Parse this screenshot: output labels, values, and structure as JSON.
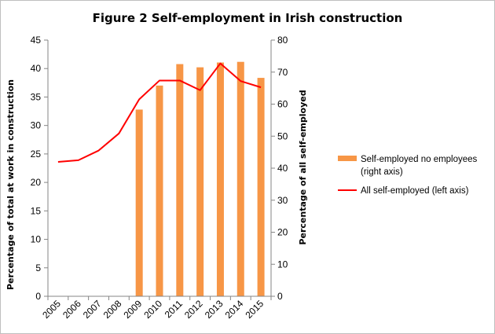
{
  "chart_data": {
    "type": "bar",
    "title": "Figure 2 Self-employment in Irish construction",
    "categories": [
      "2005",
      "2006",
      "2007",
      "2008",
      "2009",
      "2010",
      "2011",
      "2012",
      "2013",
      "2014",
      "2015"
    ],
    "ylabel_left": "Percentage of total at work in construction",
    "ylabel_right": "Percentage of all self-employed",
    "ylim_left": [
      0,
      45
    ],
    "yticks_left": [
      "0",
      "5",
      "10",
      "15",
      "20",
      "25",
      "30",
      "35",
      "40",
      "45"
    ],
    "ylim_right": [
      0,
      80
    ],
    "yticks_right": [
      "0",
      "10",
      "20",
      "30",
      "40",
      "50",
      "60",
      "70",
      "80"
    ],
    "grid": false,
    "series": [
      {
        "name": "Self-employed no employees",
        "legend_line2": "(right axis)",
        "type": "bar",
        "axis": "right",
        "color": "#f79646",
        "values": [
          null,
          null,
          null,
          null,
          58.3,
          65.8,
          72.5,
          71.5,
          73.0,
          73.2,
          68.2
        ]
      },
      {
        "name": "All self-employed (left axis)",
        "type": "line",
        "axis": "left",
        "color": "#ff0000",
        "values": [
          23.6,
          23.9,
          25.6,
          28.6,
          34.6,
          37.9,
          37.9,
          36.2,
          40.9,
          37.8,
          36.7
        ]
      }
    ],
    "legend_position": "right"
  }
}
